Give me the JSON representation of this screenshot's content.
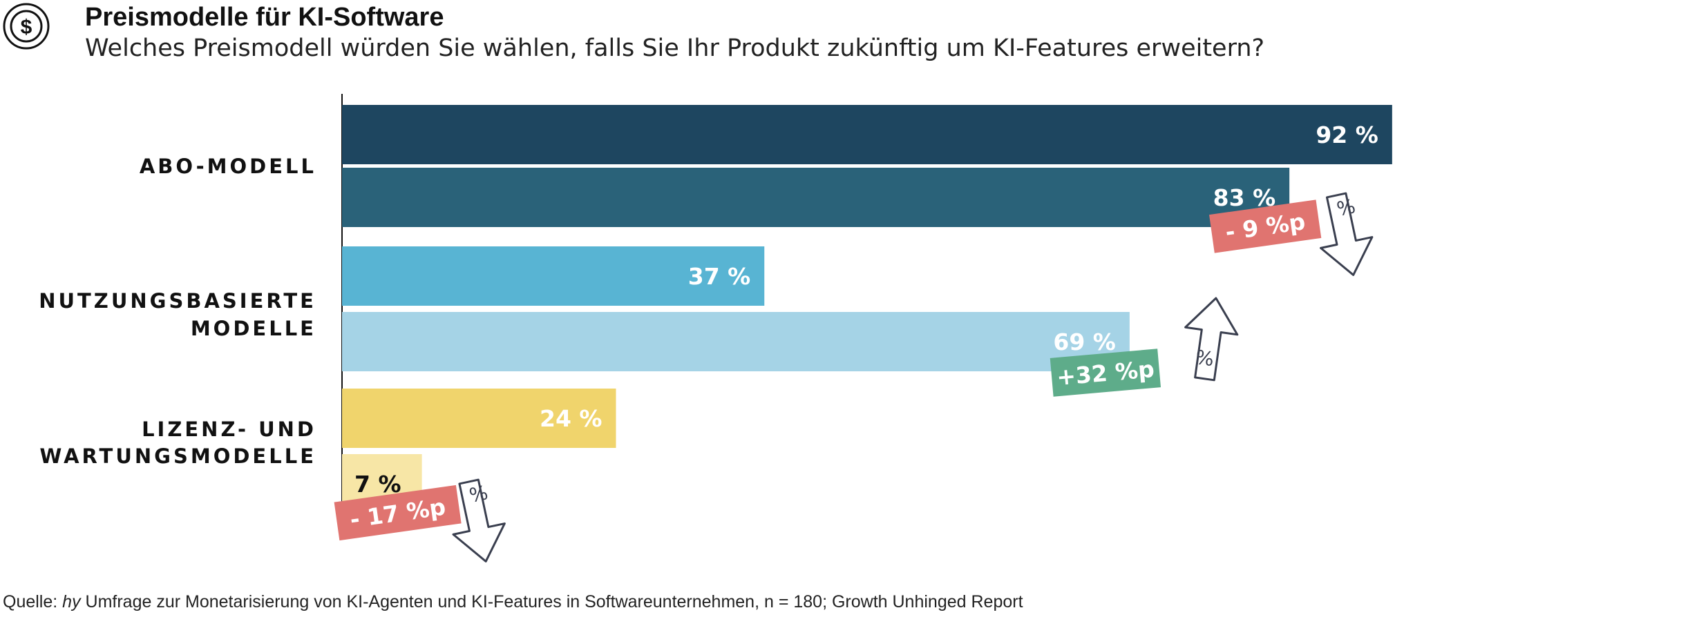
{
  "header": {
    "icon": "dollar-coin-icon",
    "title": "Preismodelle für KI-Software",
    "subtitle": "Welches Preismodell würden Sie wählen, falls Sie Ihr Produkt zukünftig um KI-Features erweitern?"
  },
  "source": {
    "prefix": "Quelle: ",
    "italic": "hy",
    "text": " Umfrage zur Monetarisierung von KI-Agenten und KI-Features in Softwareunternehmen, n = 180;  Growth Unhinged Report"
  },
  "chart_data": {
    "type": "bar",
    "orientation": "horizontal",
    "xlim": [
      0,
      100
    ],
    "categories": [
      {
        "label_lines": [
          "ABO-MODELL"
        ],
        "bars": [
          {
            "value": 92,
            "label": "92 %",
            "color": "#1e4660",
            "label_color": "#ffffff"
          },
          {
            "value": 83,
            "label": "83 %",
            "color": "#2a6279",
            "label_color": "#ffffff"
          }
        ],
        "change": {
          "label": "- 9 %p",
          "direction": "down",
          "color": "#e07470"
        }
      },
      {
        "label_lines": [
          "NUTZUNGSBASIERTE",
          "MODELLE"
        ],
        "bars": [
          {
            "value": 37,
            "label": "37 %",
            "color": "#58b4d3",
            "label_color": "#ffffff"
          },
          {
            "value": 69,
            "label": "69 %",
            "color": "#a5d3e6",
            "label_color": "#ffffff"
          }
        ],
        "change": {
          "label": "+32 %p",
          "direction": "up",
          "color": "#5eac8a"
        }
      },
      {
        "label_lines": [
          "LIZENZ- UND",
          "WARTUNGSMODELLE"
        ],
        "bars": [
          {
            "value": 24,
            "label": "24 %",
            "color": "#f0d46c",
            "label_color": "#ffffff"
          },
          {
            "value": 7,
            "label": "7 %",
            "color": "#f7e6a6",
            "label_color": "#111111"
          }
        ],
        "change": {
          "label": "- 17 %p",
          "direction": "down",
          "color": "#e07470"
        }
      }
    ]
  }
}
